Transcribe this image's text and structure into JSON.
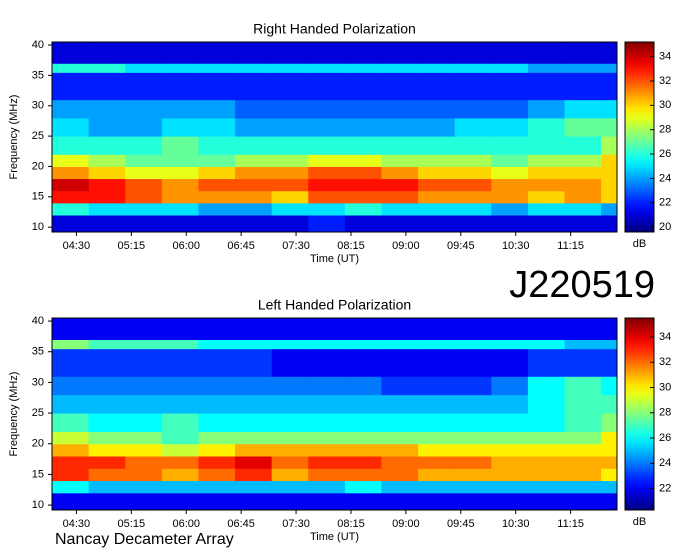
{
  "chart_data": [
    {
      "type": "heatmap",
      "title": "Right Handed Polarization",
      "x_label": "Time (UT)",
      "y_label": "Frequency (MHz)",
      "colorbar_label": "dB",
      "xlim": [
        250,
        713
      ],
      "ylim": [
        9.2,
        40.5
      ],
      "zlim": [
        19.6,
        35.2
      ],
      "xticks": [
        {
          "value": 270,
          "label": "04:30"
        },
        {
          "value": 315,
          "label": "05:15"
        },
        {
          "value": 360,
          "label": "06:00"
        },
        {
          "value": 405,
          "label": "06:45"
        },
        {
          "value": 450,
          "label": "07:30"
        },
        {
          "value": 495,
          "label": "08:15"
        },
        {
          "value": 540,
          "label": "09:00"
        },
        {
          "value": 585,
          "label": "09:45"
        },
        {
          "value": 630,
          "label": "10:30"
        },
        {
          "value": 675,
          "label": "11:15"
        }
      ],
      "yticks": [
        10,
        15,
        20,
        25,
        30,
        35,
        40
      ],
      "zticks": [
        20,
        22,
        24,
        26,
        28,
        30,
        32,
        34
      ],
      "xbins": [
        250,
        280,
        310,
        340,
        370,
        400,
        430,
        460,
        490,
        520,
        550,
        580,
        610,
        640,
        670,
        700,
        713
      ],
      "ybins": [
        9.2,
        12,
        14,
        16,
        18,
        20,
        22,
        25,
        28,
        31,
        35.5,
        37,
        40.5
      ],
      "z": [
        [
          21,
          21,
          21,
          21,
          21,
          21,
          21,
          22,
          21,
          21,
          21,
          21,
          21,
          21,
          21,
          21
        ],
        [
          26,
          25,
          25,
          25,
          24,
          24,
          25,
          25,
          26,
          25,
          25,
          25,
          24,
          25,
          25,
          24
        ],
        [
          33,
          33,
          32,
          31,
          31,
          31,
          30,
          32,
          32,
          32,
          31,
          31,
          31,
          30,
          31,
          30
        ],
        [
          34,
          33,
          32,
          31,
          32,
          32,
          32,
          33,
          33,
          33,
          32,
          32,
          31,
          31,
          31,
          30
        ],
        [
          31,
          30,
          29,
          29,
          30,
          31,
          31,
          32,
          32,
          31,
          30,
          30,
          29,
          30,
          30,
          30
        ],
        [
          29,
          28,
          27,
          27,
          27,
          28,
          28,
          29,
          29,
          28,
          28,
          28,
          27,
          28,
          28,
          30
        ],
        [
          26,
          26,
          26,
          27,
          26,
          26,
          26,
          26,
          26,
          26,
          26,
          26,
          26,
          26,
          26,
          28
        ],
        [
          25,
          24,
          24,
          25,
          25,
          24,
          24,
          24,
          24,
          24,
          24,
          25,
          25,
          26,
          27,
          27
        ],
        [
          24,
          24,
          24,
          24,
          24,
          23,
          23,
          23,
          23,
          23,
          23,
          23,
          23,
          24,
          25,
          25
        ],
        [
          22,
          22,
          22,
          22,
          22,
          22,
          22,
          22,
          22,
          22,
          22,
          22,
          22,
          22,
          22,
          22
        ],
        [
          26,
          26,
          25,
          25,
          25,
          25,
          25,
          25,
          25,
          25,
          25,
          25,
          25,
          24,
          24,
          24
        ],
        [
          21,
          21,
          21,
          21,
          21,
          21,
          21,
          21,
          21,
          21,
          21,
          21,
          21,
          21,
          21,
          21
        ]
      ]
    },
    {
      "type": "heatmap",
      "title": "Left Handed Polarization",
      "x_label": "Time (UT)",
      "y_label": "Frequency (MHz)",
      "colorbar_label": "dB",
      "xlim": [
        250,
        713
      ],
      "ylim": [
        9.2,
        40.5
      ],
      "zlim": [
        20.3,
        35.5
      ],
      "xticks": [
        {
          "value": 270,
          "label": "04:30"
        },
        {
          "value": 315,
          "label": "05:15"
        },
        {
          "value": 360,
          "label": "06:00"
        },
        {
          "value": 405,
          "label": "06:45"
        },
        {
          "value": 450,
          "label": "07:30"
        },
        {
          "value": 495,
          "label": "08:15"
        },
        {
          "value": 540,
          "label": "09:00"
        },
        {
          "value": 585,
          "label": "09:45"
        },
        {
          "value": 630,
          "label": "10:30"
        },
        {
          "value": 675,
          "label": "11:15"
        }
      ],
      "yticks": [
        10,
        15,
        20,
        25,
        30,
        35,
        40
      ],
      "zticks": [
        22,
        24,
        26,
        28,
        30,
        32,
        34
      ],
      "xbins": [
        250,
        280,
        310,
        340,
        370,
        400,
        430,
        460,
        490,
        520,
        550,
        580,
        610,
        640,
        670,
        700,
        713
      ],
      "ybins": [
        9.2,
        12,
        14,
        16,
        18,
        20,
        22,
        25,
        28,
        31,
        35.5,
        37,
        40.5
      ],
      "z": [
        [
          22,
          22,
          22,
          22,
          22,
          22,
          22,
          22,
          22,
          22,
          22,
          22,
          22,
          22,
          22,
          22
        ],
        [
          26,
          25,
          25,
          25,
          25,
          25,
          25,
          25,
          26,
          25,
          25,
          25,
          25,
          25,
          25,
          25
        ],
        [
          33,
          32,
          32,
          31,
          32,
          33,
          31,
          32,
          32,
          32,
          31,
          31,
          31,
          31,
          31,
          30
        ],
        [
          33,
          33,
          32,
          32,
          33,
          34,
          32,
          33,
          33,
          32,
          32,
          32,
          31,
          31,
          31,
          31
        ],
        [
          31,
          30,
          30,
          29,
          30,
          31,
          31,
          31,
          31,
          31,
          30,
          30,
          30,
          30,
          30,
          30
        ],
        [
          29,
          28,
          28,
          27,
          28,
          28,
          28,
          28,
          28,
          28,
          28,
          28,
          28,
          28,
          28,
          30
        ],
        [
          27,
          26,
          26,
          27,
          26,
          26,
          26,
          26,
          26,
          26,
          26,
          26,
          26,
          26,
          27,
          28
        ],
        [
          25,
          25,
          25,
          25,
          25,
          25,
          25,
          25,
          25,
          25,
          25,
          25,
          25,
          26,
          27,
          27
        ],
        [
          24,
          24,
          24,
          24,
          24,
          24,
          24,
          24,
          24,
          23,
          23,
          23,
          24,
          26,
          27,
          26
        ],
        [
          23,
          23,
          23,
          23,
          23,
          23,
          22,
          22,
          22,
          22,
          22,
          22,
          22,
          23,
          23,
          23
        ],
        [
          28,
          27,
          27,
          27,
          26,
          26,
          26,
          26,
          26,
          26,
          26,
          26,
          26,
          26,
          25,
          25
        ],
        [
          22,
          22,
          22,
          22,
          22,
          22,
          22,
          22,
          22,
          22,
          22,
          22,
          22,
          22,
          22,
          22
        ]
      ]
    }
  ],
  "label": "J220519",
  "footer": "Nancay Decameter Array"
}
